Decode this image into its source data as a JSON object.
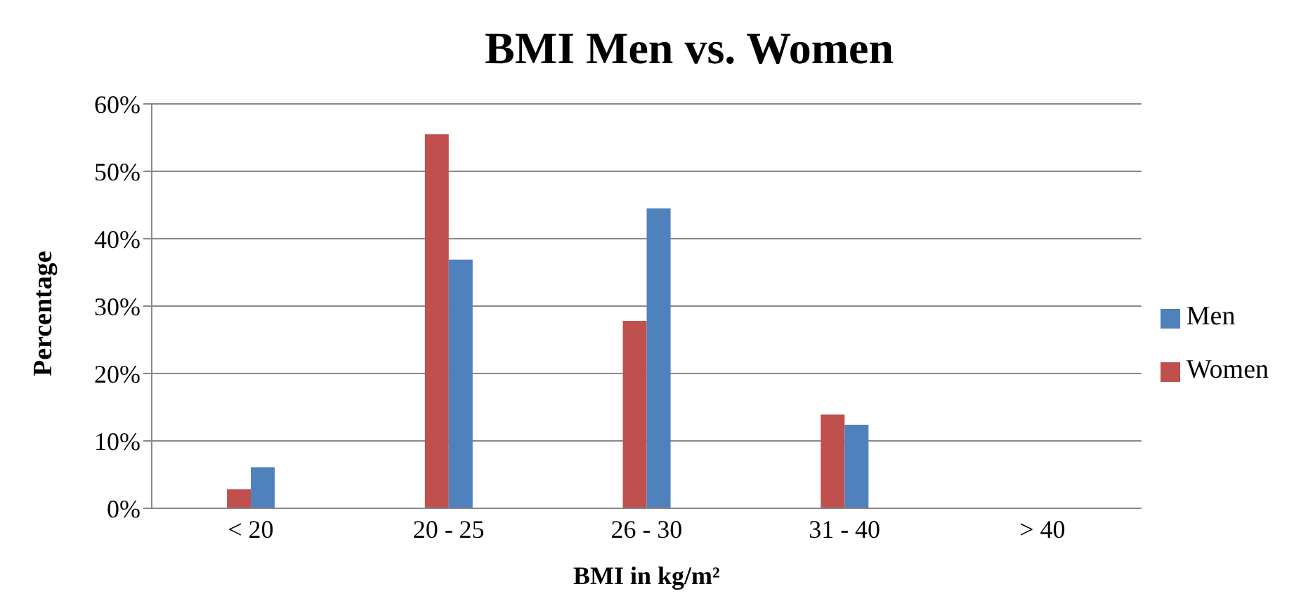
{
  "chart_data": {
    "type": "bar",
    "title": "BMI Men vs. Women",
    "xlabel": "BMI in kg/m²",
    "ylabel": "Percentage",
    "categories": [
      "< 20",
      "20 - 25",
      "26 - 30",
      "31 - 40",
      "> 40"
    ],
    "series": [
      {
        "name": "Women",
        "color": "#c0504d",
        "values": [
          2.8,
          55.5,
          27.8,
          13.9,
          0
        ]
      },
      {
        "name": "Men",
        "color": "#4f81bd",
        "values": [
          6.1,
          36.9,
          44.5,
          12.4,
          0
        ]
      }
    ],
    "ylim": [
      0,
      60
    ],
    "yticks": [
      {
        "value": 0,
        "label": "0%"
      },
      {
        "value": 10,
        "label": "10%"
      },
      {
        "value": 20,
        "label": "20%"
      },
      {
        "value": 30,
        "label": "30%"
      },
      {
        "value": 40,
        "label": "40%"
      },
      {
        "value": 50,
        "label": "50%"
      },
      {
        "value": 60,
        "label": "60%"
      }
    ],
    "grid": "y",
    "legend": "right"
  }
}
